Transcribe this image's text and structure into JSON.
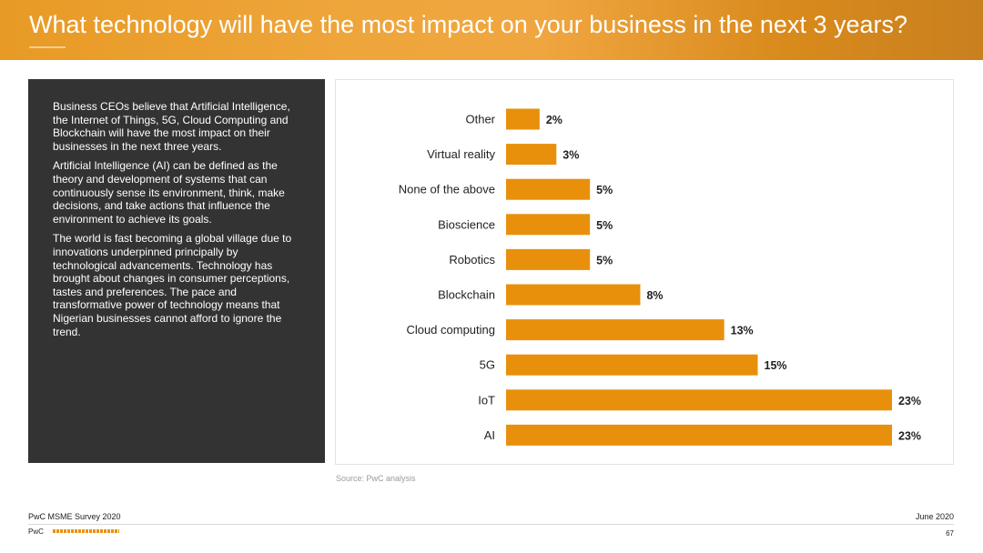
{
  "header": {
    "title": "What technology will have the most impact on your business in the next 3 years?"
  },
  "summary": {
    "paragraphs": [
      "Business CEOs believe that Artificial Intelligence, the Internet of Things, 5G, Cloud Computing and Blockchain will have the most impact on their businesses in the next three years.",
      "Artificial Intelligence (AI) can be defined as the theory and development of systems that can continuously sense its environment, think, make decisions, and take actions that influence the environment to achieve its goals.",
      "The world is fast becoming a global village due to innovations underpinned principally by technological advancements. Technology has brought about changes in consumer perceptions, tastes and preferences. The pace and transformative power of technology means that Nigerian businesses cannot afford to ignore the trend."
    ]
  },
  "chart_data": {
    "type": "bar",
    "orientation": "horizontal",
    "categories": [
      "Other",
      "Virtual reality",
      "None of the above",
      "Bioscience",
      "Robotics",
      "Blockchain",
      "Cloud computing",
      "5G",
      "IoT",
      "AI"
    ],
    "values": [
      2,
      3,
      5,
      5,
      5,
      8,
      13,
      15,
      23,
      23
    ],
    "value_labels": [
      "2%",
      "3%",
      "5%",
      "5%",
      "5%",
      "8%",
      "13%",
      "15%",
      "23%",
      "23%"
    ],
    "unit": "%",
    "bar_color": "#e8900c",
    "grid": false,
    "legend": "none"
  },
  "source": "Source: PwC analysis",
  "footer": {
    "survey": "PwC MSME Survey 2020",
    "date": "June 2020",
    "brand": "PwC",
    "page": "67"
  },
  "colors": {
    "accent": "#e8900c",
    "panel_dark": "#333333"
  }
}
